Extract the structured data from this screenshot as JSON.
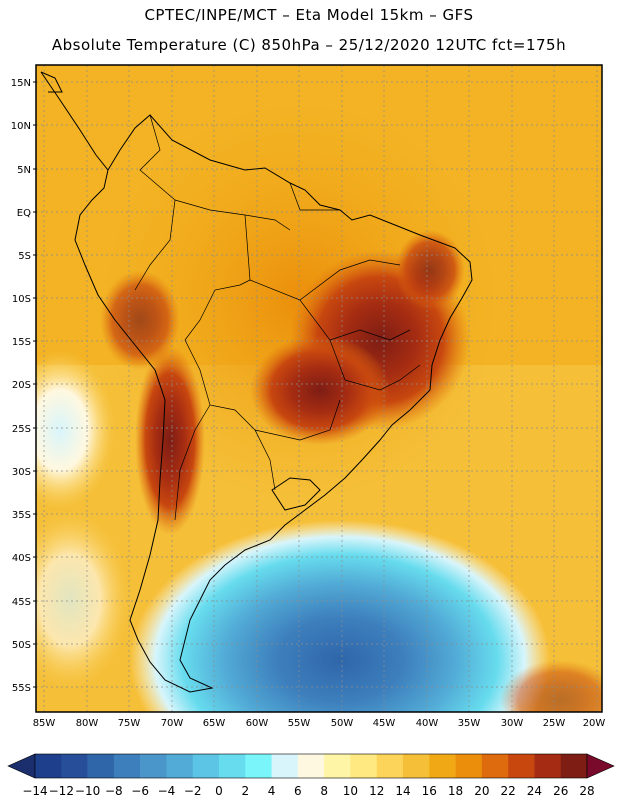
{
  "title_line1": "CPTEC/INPE/MCT –  Eta Model 15km – GFS",
  "title_line2": "Absolute Temperature (C) 850hPa – 25/12/2020 12UTC fct=175h",
  "lat_labels": [
    "15N",
    "10N",
    "5N",
    "EQ",
    "5S",
    "10S",
    "15S",
    "20S",
    "25S",
    "30S",
    "35S",
    "40S",
    "45S",
    "50S",
    "55S"
  ],
  "lon_labels": [
    "85W",
    "80W",
    "75W",
    "70W",
    "65W",
    "60W",
    "55W",
    "50W",
    "45W",
    "40W",
    "35W",
    "30W",
    "25W",
    "20W"
  ],
  "colorbar": {
    "labels": [
      "-14",
      "-12",
      "-10",
      "-8",
      "-6",
      "-4",
      "-2",
      "0",
      "2",
      "4",
      "6",
      "8",
      "10",
      "12",
      "14",
      "16",
      "18",
      "20",
      "22",
      "24",
      "26",
      "28"
    ],
    "colors": [
      "#1d3f8c",
      "#274f99",
      "#2f66aa",
      "#3d7fbd",
      "#4a95c9",
      "#52abd6",
      "#5cc4e4",
      "#67dcee",
      "#7af5fa",
      "#d8f5fb",
      "#fff8e0",
      "#fff5a6",
      "#ffe980",
      "#fcd45a",
      "#f5bf38",
      "#f0a914",
      "#eb8e0b",
      "#de6b0d",
      "#c8470f",
      "#a52c12",
      "#7e1d14"
    ],
    "low_color": "#1b2f6e",
    "high_color": "#7a0a2c"
  }
}
